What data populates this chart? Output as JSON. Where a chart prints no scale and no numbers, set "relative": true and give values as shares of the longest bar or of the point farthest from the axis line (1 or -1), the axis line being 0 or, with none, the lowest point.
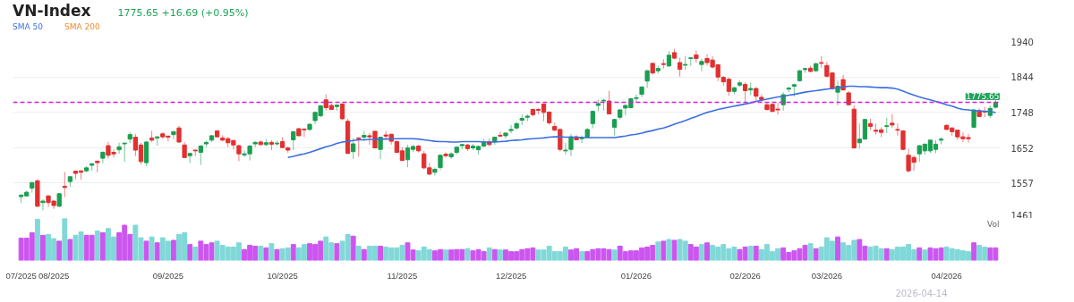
{
  "chart_data": [
    {
      "type": "candlestick",
      "title": "VN-Index",
      "subtitle": "1775.65 +16.69 (+0.95%)",
      "categories": [
        null,
        null,
        null,
        null,
        null,
        null,
        null,
        null,
        null,
        null,
        null,
        null,
        null,
        null,
        null,
        null,
        null,
        null,
        null,
        null,
        null,
        null,
        null,
        null,
        null,
        null,
        null,
        null,
        null,
        null,
        null,
        null,
        null,
        null,
        null,
        null,
        null,
        null,
        null,
        null,
        null,
        null,
        null,
        null,
        null,
        null,
        null,
        null,
        null,
        null,
        null,
        null,
        null,
        null,
        null,
        null,
        null,
        null,
        null,
        null,
        null,
        null,
        null,
        null,
        null,
        null,
        null,
        null,
        null,
        null,
        null,
        null,
        null,
        null,
        null,
        null,
        null,
        null,
        null,
        null,
        null,
        null,
        null,
        null,
        null,
        null,
        null,
        null,
        null,
        null,
        null,
        null,
        null,
        null,
        null,
        null,
        null,
        null,
        null,
        null,
        null,
        null,
        null,
        null,
        null,
        null,
        null,
        null,
        null,
        null,
        null,
        null,
        null,
        null,
        null,
        null,
        null,
        null,
        null,
        null,
        null,
        null,
        null,
        null,
        null,
        null,
        null,
        null,
        null,
        null,
        null,
        null,
        null,
        null,
        null,
        null,
        null,
        null,
        null,
        null,
        null,
        null,
        null,
        null,
        null,
        null,
        null,
        null,
        null,
        null,
        null,
        null,
        null,
        null,
        null,
        null,
        null,
        null,
        null,
        null,
        null,
        null,
        null,
        null,
        null,
        null,
        null,
        null,
        null,
        null,
        null,
        null,
        null,
        null,
        null,
        null,
        null,
        null,
        null,
        null
      ],
      "ohlc": [
        [
          1520,
          1527,
          1503,
          1524
        ],
        [
          1522,
          1536,
          1521,
          1532
        ],
        [
          1543,
          1561,
          1531,
          1558
        ],
        [
          1563,
          1566,
          1492,
          1494
        ],
        [
          1504,
          1513,
          1483,
          1508
        ],
        [
          1522,
          1524,
          1492,
          1504
        ],
        [
          1508,
          1511,
          1487,
          1496
        ],
        [
          1494,
          1529,
          1492,
          1528
        ],
        [
          1548,
          1587,
          1519,
          1545
        ],
        [
          1561,
          1575,
          1547,
          1574
        ],
        [
          1589,
          1590,
          1567,
          1583
        ],
        [
          1590,
          1591,
          1566,
          1586
        ],
        [
          1590,
          1603,
          1586,
          1598
        ],
        [
          1605,
          1611,
          1590,
          1609
        ],
        [
          1616,
          1618,
          1586,
          1612
        ],
        [
          1624,
          1644,
          1611,
          1640
        ],
        [
          1658,
          1668,
          1623,
          1632
        ],
        [
          1640,
          1648,
          1626,
          1636
        ],
        [
          1647,
          1666,
          1636,
          1655
        ],
        [
          1663,
          1666,
          1615,
          1665
        ],
        [
          1676,
          1695,
          1665,
          1688
        ],
        [
          1681,
          1690,
          1630,
          1646
        ],
        [
          1660,
          1666,
          1607,
          1615
        ],
        [
          1612,
          1670,
          1603,
          1668
        ],
        [
          1679,
          1698,
          1668,
          1673
        ],
        [
          1679,
          1684,
          1658,
          1682
        ],
        [
          1690,
          1694,
          1677,
          1682
        ],
        [
          1684,
          1685,
          1670,
          1681
        ],
        [
          1688,
          1698,
          1676,
          1696
        ],
        [
          1706,
          1712,
          1665,
          1668
        ],
        [
          1660,
          1668,
          1624,
          1626
        ],
        [
          1631,
          1639,
          1611,
          1637
        ],
        [
          1646,
          1648,
          1630,
          1644
        ],
        [
          1640,
          1660,
          1606,
          1657
        ],
        [
          1663,
          1671,
          1654,
          1667
        ],
        [
          1673,
          1687,
          1668,
          1685
        ],
        [
          1698,
          1700,
          1681,
          1682
        ],
        [
          1679,
          1686,
          1670,
          1673
        ],
        [
          1677,
          1682,
          1654,
          1666
        ],
        [
          1672,
          1674,
          1648,
          1660
        ],
        [
          1658,
          1661,
          1616,
          1636
        ],
        [
          1633,
          1645,
          1627,
          1636
        ],
        [
          1636,
          1660,
          1618,
          1657
        ],
        [
          1663,
          1670,
          1654,
          1667
        ],
        [
          1668,
          1673,
          1657,
          1661
        ],
        [
          1661,
          1676,
          1656,
          1666
        ],
        [
          1667,
          1673,
          1646,
          1662
        ],
        [
          1663,
          1671,
          1658,
          1665
        ],
        [
          1669,
          1681,
          1652,
          1653
        ],
        [
          1652,
          1656,
          1639,
          1646
        ],
        [
          1674,
          1698,
          1646,
          1696
        ],
        [
          1704,
          1706,
          1684,
          1685
        ],
        [
          1703,
          1705,
          1681,
          1701
        ],
        [
          1702,
          1718,
          1698,
          1716
        ],
        [
          1726,
          1751,
          1716,
          1748
        ],
        [
          1739,
          1768,
          1735,
          1766
        ],
        [
          1782,
          1797,
          1753,
          1761
        ],
        [
          1767,
          1772,
          1755,
          1756
        ],
        [
          1764,
          1769,
          1753,
          1768
        ],
        [
          1771,
          1772,
          1727,
          1731
        ],
        [
          1724,
          1731,
          1636,
          1637
        ],
        [
          1642,
          1678,
          1622,
          1663
        ],
        [
          1679,
          1681,
          1628,
          1677
        ],
        [
          1681,
          1698,
          1670,
          1686
        ],
        [
          1685,
          1692,
          1660,
          1682
        ],
        [
          1697,
          1698,
          1652,
          1652
        ],
        [
          1648,
          1682,
          1622,
          1681
        ],
        [
          1687,
          1697,
          1677,
          1684
        ],
        [
          1689,
          1690,
          1661,
          1670
        ],
        [
          1669,
          1673,
          1638,
          1640
        ],
        [
          1644,
          1654,
          1616,
          1618
        ],
        [
          1620,
          1660,
          1600,
          1652
        ],
        [
          1648,
          1660,
          1640,
          1656
        ],
        [
          1657,
          1660,
          1640,
          1644
        ],
        [
          1636,
          1644,
          1594,
          1598
        ],
        [
          1598,
          1611,
          1579,
          1581
        ],
        [
          1586,
          1599,
          1577,
          1594
        ],
        [
          1599,
          1634,
          1592,
          1632
        ],
        [
          1635,
          1640,
          1626,
          1631
        ],
        [
          1628,
          1640,
          1622,
          1636
        ],
        [
          1640,
          1657,
          1634,
          1654
        ],
        [
          1658,
          1663,
          1648,
          1661
        ],
        [
          1660,
          1663,
          1644,
          1650
        ],
        [
          1652,
          1663,
          1646,
          1657
        ],
        [
          1647,
          1658,
          1634,
          1656
        ],
        [
          1657,
          1677,
          1654,
          1668
        ],
        [
          1669,
          1678,
          1656,
          1661
        ],
        [
          1669,
          1682,
          1660,
          1681
        ],
        [
          1686,
          1696,
          1681,
          1684
        ],
        [
          1685,
          1695,
          1678,
          1692
        ],
        [
          1699,
          1714,
          1692,
          1702
        ],
        [
          1706,
          1721,
          1702,
          1718
        ],
        [
          1727,
          1743,
          1714,
          1732
        ],
        [
          1735,
          1743,
          1724,
          1738
        ],
        [
          1756,
          1759,
          1737,
          1742
        ],
        [
          1756,
          1759,
          1743,
          1754
        ],
        [
          1771,
          1772,
          1724,
          1748
        ],
        [
          1749,
          1751,
          1714,
          1720
        ],
        [
          1710,
          1720,
          1698,
          1700
        ],
        [
          1702,
          1705,
          1642,
          1648
        ],
        [
          1644,
          1666,
          1634,
          1646
        ],
        [
          1648,
          1690,
          1630,
          1682
        ],
        [
          1682,
          1686,
          1673,
          1674
        ],
        [
          1677,
          1686,
          1665,
          1680
        ],
        [
          1681,
          1706,
          1678,
          1702
        ],
        [
          1718,
          1753,
          1705,
          1751
        ],
        [
          1767,
          1783,
          1751,
          1772
        ],
        [
          1779,
          1785,
          1753,
          1781
        ],
        [
          1779,
          1807,
          1743,
          1744
        ],
        [
          1708,
          1730,
          1686,
          1729
        ],
        [
          1735,
          1756,
          1729,
          1755
        ],
        [
          1760,
          1769,
          1740,
          1767
        ],
        [
          1761,
          1788,
          1759,
          1785
        ],
        [
          1786,
          1797,
          1775,
          1788
        ],
        [
          1797,
          1819,
          1789,
          1817
        ],
        [
          1833,
          1863,
          1815,
          1861
        ],
        [
          1881,
          1883,
          1850,
          1855
        ],
        [
          1861,
          1875,
          1853,
          1867
        ],
        [
          1880,
          1892,
          1867,
          1878
        ],
        [
          1874,
          1914,
          1871,
          1903
        ],
        [
          1910,
          1920,
          1892,
          1895
        ],
        [
          1883,
          1896,
          1845,
          1865
        ],
        [
          1876,
          1901,
          1863,
          1878
        ],
        [
          1894,
          1898,
          1874,
          1896
        ],
        [
          1904,
          1916,
          1883,
          1894
        ],
        [
          1878,
          1893,
          1859,
          1886
        ],
        [
          1894,
          1906,
          1875,
          1883
        ],
        [
          1890,
          1900,
          1867,
          1871
        ],
        [
          1877,
          1879,
          1833,
          1844
        ],
        [
          1843,
          1847,
          1821,
          1831
        ],
        [
          1838,
          1843,
          1793,
          1805
        ],
        [
          1805,
          1817,
          1797,
          1815
        ],
        [
          1822,
          1834,
          1817,
          1828
        ],
        [
          1824,
          1830,
          1777,
          1807
        ],
        [
          1809,
          1829,
          1795,
          1813
        ],
        [
          1813,
          1816,
          1780,
          1792
        ],
        [
          1789,
          1797,
          1777,
          1783
        ],
        [
          1769,
          1775,
          1753,
          1756
        ],
        [
          1770,
          1772,
          1748,
          1751
        ],
        [
          1757,
          1774,
          1742,
          1755
        ],
        [
          1769,
          1803,
          1753,
          1796
        ],
        [
          1811,
          1817,
          1803,
          1814
        ],
        [
          1819,
          1826,
          1791,
          1823
        ],
        [
          1834,
          1863,
          1831,
          1861
        ],
        [
          1864,
          1869,
          1855,
          1867
        ],
        [
          1868,
          1875,
          1857,
          1859
        ],
        [
          1861,
          1883,
          1858,
          1880
        ],
        [
          1883,
          1901,
          1869,
          1881
        ],
        [
          1875,
          1885,
          1843,
          1846
        ],
        [
          1855,
          1856,
          1809,
          1813
        ],
        [
          1803,
          1834,
          1767,
          1819
        ],
        [
          1837,
          1850,
          1807,
          1809
        ],
        [
          1801,
          1806,
          1767,
          1769
        ],
        [
          1757,
          1768,
          1650,
          1652
        ],
        [
          1666,
          1718,
          1650,
          1676
        ],
        [
          1676,
          1731,
          1674,
          1729
        ],
        [
          1718,
          1731,
          1700,
          1710
        ],
        [
          1700,
          1718,
          1688,
          1697
        ],
        [
          1701,
          1708,
          1681,
          1694
        ],
        [
          1710,
          1734,
          1692,
          1712
        ],
        [
          1719,
          1744,
          1706,
          1714
        ],
        [
          1702,
          1718,
          1685,
          1700
        ],
        [
          1698,
          1700,
          1646,
          1648
        ],
        [
          1632,
          1650,
          1586,
          1590
        ],
        [
          1626,
          1632,
          1590,
          1613
        ],
        [
          1636,
          1660,
          1614,
          1658
        ],
        [
          1644,
          1665,
          1634,
          1662
        ],
        [
          1644,
          1674,
          1638,
          1673
        ],
        [
          1648,
          1673,
          1638,
          1662
        ],
        [
          1673,
          1681,
          1662,
          1676
        ],
        [
          1713,
          1716,
          1700,
          1702
        ],
        [
          1706,
          1708,
          1684,
          1696
        ],
        [
          1700,
          1702,
          1674,
          1682
        ],
        [
          1682,
          1694,
          1668,
          1677
        ],
        [
          1680,
          1690,
          1666,
          1677
        ],
        [
          1708,
          1756,
          1706,
          1755
        ],
        [
          1753,
          1759,
          1735,
          1737
        ],
        [
          1751,
          1763,
          1735,
          1749
        ],
        [
          1740,
          1767,
          1733,
          1759
        ],
        [
          1762,
          1783,
          1759,
          1775.65
        ]
      ],
      "colors": [
        "#1a9e50",
        "#1a9e50",
        "#1a9e50",
        "#e0302f",
        "#1a9e50",
        "#e0302f",
        "#e0302f",
        "#1a9e50",
        "#e0302f",
        "#1a9e50",
        "#e0302f",
        "#e0302f",
        "#1a9e50",
        "#1a9e50",
        "#e0302f",
        "#1a9e50",
        "#e0302f",
        "#e0302f",
        "#1a9e50",
        "#1a9e50",
        "#1a9e50",
        "#e0302f",
        "#e0302f",
        "#1a9e50",
        "#e0302f",
        "#1a9e50",
        "#e0302f",
        "#e0302f",
        "#1a9e50",
        "#e0302f",
        "#e0302f",
        "#1a9e50",
        "#e0302f",
        "#1a9e50",
        "#1a9e50",
        "#1a9e50",
        "#e0302f",
        "#e0302f",
        "#e0302f",
        "#e0302f",
        "#e0302f",
        "#1a9e50",
        "#1a9e50",
        "#1a9e50",
        "#e0302f",
        "#1a9e50",
        "#e0302f",
        "#1a9e50",
        "#e0302f",
        "#e0302f",
        "#1a9e50",
        "#e0302f",
        "#e0302f",
        "#1a9e50",
        "#1a9e50",
        "#1a9e50",
        "#e0302f",
        "#e0302f",
        "#1a9e50",
        "#e0302f",
        "#e0302f",
        "#1a9e50",
        "#e0302f",
        "#1a9e50",
        "#e0302f",
        "#e0302f",
        "#1a9e50",
        "#e0302f",
        "#e0302f",
        "#e0302f",
        "#e0302f",
        "#1a9e50",
        "#1a9e50",
        "#e0302f",
        "#e0302f",
        "#e0302f",
        "#1a9e50",
        "#1a9e50",
        "#e0302f",
        "#1a9e50",
        "#1a9e50",
        "#1a9e50",
        "#e0302f",
        "#1a9e50",
        "#1a9e50",
        "#1a9e50",
        "#e0302f",
        "#1a9e50",
        "#e0302f",
        "#1a9e50",
        "#1a9e50",
        "#1a9e50",
        "#1a9e50",
        "#1a9e50",
        "#e0302f",
        "#e0302f",
        "#e0302f",
        "#e0302f",
        "#e0302f",
        "#e0302f",
        "#1a9e50",
        "#1a9e50",
        "#e0302f",
        "#1a9e50",
        "#1a9e50",
        "#1a9e50",
        "#1a9e50",
        "#1a9e50",
        "#e0302f",
        "#1a9e50",
        "#1a9e50",
        "#1a9e50",
        "#1a9e50",
        "#1a9e50",
        "#1a9e50",
        "#1a9e50",
        "#e0302f",
        "#1a9e50",
        "#e0302f",
        "#1a9e50",
        "#e0302f",
        "#e0302f",
        "#1a9e50",
        "#1a9e50",
        "#e0302f",
        "#1a9e50",
        "#e0302f",
        "#e0302f",
        "#e0302f",
        "#e0302f",
        "#e0302f",
        "#1a9e50",
        "#1a9e50",
        "#e0302f",
        "#1a9e50",
        "#e0302f",
        "#e0302f",
        "#e0302f",
        "#e0302f",
        "#e0302f",
        "#1a9e50",
        "#1a9e50",
        "#1a9e50",
        "#1a9e50",
        "#1a9e50",
        "#e0302f",
        "#1a9e50",
        "#e0302f",
        "#e0302f",
        "#e0302f",
        "#1a9e50",
        "#e0302f",
        "#e0302f",
        "#e0302f",
        "#1a9e50",
        "#1a9e50",
        "#e0302f",
        "#e0302f",
        "#e0302f",
        "#1a9e50",
        "#e0302f",
        "#e0302f",
        "#e0302f",
        "#e0302f",
        "#e0302f",
        "#1a9e50",
        "#1a9e50",
        "#1a9e50",
        "#1a9e50",
        "#1a9e50",
        "#e0302f",
        "#e0302f",
        "#e0302f",
        "#e0302f",
        "#e0302f",
        "#1a9e50",
        "#e0302f",
        "#e0302f",
        "#1a9e50",
        "#1a9e50"
      ],
      "series": [
        {
          "name": "SMA 50",
          "type": "line",
          "color": "#3b6fe0",
          "values": [
            null,
            null,
            null,
            null,
            null,
            null,
            null,
            null,
            null,
            null,
            null,
            null,
            null,
            null,
            null,
            null,
            null,
            null,
            null,
            null,
            null,
            null,
            null,
            null,
            null,
            null,
            null,
            null,
            null,
            null,
            null,
            null,
            null,
            null,
            null,
            null,
            null,
            null,
            null,
            null,
            null,
            null,
            null,
            null,
            null,
            null,
            null,
            null,
            null,
            1626,
            1629,
            1633,
            1636,
            1640,
            1645,
            1650,
            1655,
            1659,
            1664,
            1668,
            1670,
            1672,
            1674,
            1674,
            1675,
            1675,
            1676,
            1676,
            1677,
            1677,
            1677,
            1677,
            1677,
            1676,
            1674,
            1672,
            1670,
            1669,
            1669,
            1668,
            1668,
            1669,
            1669,
            1669,
            1669,
            1668,
            1668,
            1668,
            1669,
            1670,
            1672,
            1673,
            1674,
            1676,
            1677,
            1678,
            1679,
            1681,
            1682,
            1682,
            1681,
            1681,
            1681,
            1680,
            1680,
            1680,
            1680,
            1680,
            1680,
            1680,
            1682,
            1684,
            1687,
            1689,
            1692,
            1696,
            1699,
            1703,
            1706,
            1711,
            1716,
            1721,
            1726,
            1732,
            1737,
            1743,
            1748,
            1752,
            1756,
            1759,
            1762,
            1765,
            1768,
            1771,
            1774,
            1778,
            1781,
            1784,
            1787,
            1790,
            1792,
            1795,
            1797,
            1800,
            1803,
            1805,
            1807,
            1809,
            1811,
            1813,
            1815,
            1817,
            1819,
            1819,
            1818,
            1818,
            1817,
            1816,
            1815,
            1815,
            1814,
            1811,
            1806,
            1800,
            1795,
            1790,
            1786,
            1782,
            1778,
            1774,
            1769,
            1765,
            1760,
            1756,
            1755,
            1753,
            1752,
            1751,
            1750,
            1748
          ]
        },
        {
          "name": "SMA 200",
          "type": "line",
          "color": "#f08a30",
          "values": [
            null,
            null,
            null,
            null,
            null,
            null,
            null,
            null,
            null,
            null,
            null,
            null,
            null,
            null,
            null,
            null,
            null,
            null,
            null,
            null,
            null,
            null,
            null,
            null,
            null,
            null,
            null,
            null,
            null,
            null,
            null,
            null,
            null,
            null,
            null,
            null,
            null,
            null,
            null,
            null,
            null,
            null,
            null,
            null,
            null,
            null,
            null,
            null,
            null,
            null,
            null,
            null,
            null,
            null,
            null,
            null,
            null,
            null,
            null,
            null,
            null,
            null,
            null,
            null,
            null,
            null,
            null,
            null,
            null,
            null,
            null,
            null,
            null,
            null,
            null,
            null,
            null,
            null,
            null,
            null,
            null,
            null,
            null,
            null,
            null,
            null,
            null,
            null,
            null,
            null,
            null,
            null,
            null,
            null,
            null,
            null,
            null,
            null,
            null,
            null,
            null,
            null,
            null,
            null,
            null,
            null,
            null,
            null,
            null,
            null,
            null,
            null,
            null,
            null,
            null,
            null,
            null,
            null,
            null,
            null,
            null,
            null,
            null,
            null,
            null,
            null,
            null,
            null,
            null,
            null,
            null,
            null,
            null,
            null,
            null,
            null,
            null,
            null,
            null,
            null,
            null,
            null,
            null,
            null,
            null,
            null,
            null,
            null,
            null,
            null,
            null,
            null,
            null,
            null,
            null,
            null,
            null,
            null,
            null,
            null,
            null,
            null,
            null,
            null,
            null,
            null,
            null,
            null,
            null,
            null,
            null,
            null,
            null,
            null,
            null,
            null,
            null,
            null,
            null,
            null
          ]
        }
      ],
      "ylim": [
        1461,
        1940
      ],
      "yticks": [
        1461,
        1557,
        1652,
        1748,
        1844,
        1940
      ],
      "grid": "y",
      "legend": "top left",
      "tick_labels": "y",
      "ref_lines": [
        {
          "axis": "y",
          "value": 1775.65,
          "label": "1775.65",
          "color": "#d61ee0",
          "line_style": "dashed"
        }
      ]
    },
    {
      "type": "bar",
      "relative": true,
      "ylabel": "Vol",
      "categories": [
        "07/2025",
        null,
        null,
        null,
        null,
        null,
        "08/2025",
        null,
        null,
        null,
        null,
        null,
        null,
        null,
        null,
        null,
        null,
        null,
        null,
        null,
        null,
        null,
        null,
        null,
        null,
        null,
        null,
        "09/2025",
        null,
        null,
        null,
        null,
        null,
        null,
        null,
        null,
        null,
        null,
        null,
        null,
        null,
        null,
        null,
        null,
        null,
        null,
        null,
        null,
        "10/2025",
        null,
        null,
        null,
        null,
        null,
        null,
        null,
        null,
        null,
        null,
        null,
        null,
        null,
        null,
        null,
        null,
        null,
        null,
        null,
        null,
        null,
        "11/2025",
        null,
        null,
        null,
        null,
        null,
        null,
        null,
        null,
        null,
        null,
        null,
        null,
        null,
        null,
        null,
        null,
        null,
        null,
        null,
        "12/2025",
        null,
        null,
        null,
        null,
        null,
        null,
        null,
        null,
        null,
        null,
        null,
        null,
        null,
        null,
        null,
        null,
        null,
        null,
        null,
        null,
        null,
        null,
        "01/2026",
        null,
        null,
        null,
        null,
        null,
        null,
        null,
        null,
        null,
        null,
        null,
        null,
        null,
        null,
        null,
        null,
        null,
        null,
        null,
        "02/2026",
        null,
        null,
        null,
        null,
        null,
        null,
        null,
        null,
        null,
        null,
        null,
        null,
        null,
        null,
        "03/2026",
        null,
        null,
        null,
        null,
        null,
        null,
        null,
        null,
        null,
        null,
        null,
        null,
        null,
        null,
        null,
        null,
        null,
        null,
        null,
        null,
        null,
        "04/2026",
        null,
        null,
        null,
        null,
        null,
        null,
        null,
        null,
        null
      ],
      "values": [
        0.53,
        0.53,
        0.66,
        0.98,
        0.6,
        0.62,
        0.52,
        0.46,
        1,
        0.5,
        0.6,
        0.68,
        0.6,
        0.6,
        0.7,
        0.66,
        0.76,
        0.56,
        0.66,
        0.84,
        0.62,
        0.84,
        0.54,
        0.46,
        0.56,
        0.42,
        0.54,
        0.46,
        0.48,
        0.62,
        0.66,
        0.38,
        0.32,
        0.46,
        0.38,
        0.42,
        0.46,
        0.36,
        0.32,
        0.32,
        0.42,
        0.26,
        0.36,
        0.34,
        0.34,
        0.3,
        0.4,
        0.26,
        0.28,
        0.3,
        0.38,
        0.3,
        0.38,
        0.4,
        0.38,
        0.46,
        0.56,
        0.42,
        0.4,
        0.46,
        0.62,
        0.58,
        0.34,
        0.26,
        0.34,
        0.34,
        0.34,
        0.32,
        0.3,
        0.3,
        0.36,
        0.42,
        0.25,
        0.23,
        0.32,
        0.26,
        0.23,
        0.26,
        0.25,
        0.25,
        0.26,
        0.26,
        0.28,
        0.23,
        0.26,
        0.21,
        0.3,
        0.26,
        0.25,
        0.25,
        0.21,
        0.21,
        0.26,
        0.28,
        0.3,
        0.25,
        0.25,
        0.34,
        0.21,
        0.21,
        0.32,
        0.25,
        0.28,
        0.21,
        0.21,
        0.26,
        0.28,
        0.28,
        0.26,
        0.25,
        0.34,
        0.21,
        0.23,
        0.23,
        0.3,
        0.32,
        0.36,
        0.44,
        0.46,
        0.5,
        0.48,
        0.5,
        0.46,
        0.38,
        0.32,
        0.38,
        0.42,
        0.36,
        0.32,
        0.38,
        0.28,
        0.32,
        0.26,
        0.32,
        0.34,
        0.34,
        0.26,
        0.38,
        0.21,
        0.28,
        0.3,
        0.19,
        0.23,
        0.28,
        0.36,
        0.4,
        0.28,
        0.32,
        0.54,
        0.46,
        0.56,
        0.42,
        0.36,
        0.48,
        0.5,
        0.34,
        0.32,
        0.34,
        0.28,
        0.28,
        0.26,
        0.32,
        0.32,
        0.38,
        0.26,
        0.3,
        0.25,
        0.3,
        0.28,
        0.3,
        0.32,
        0.28,
        0.26,
        0.23,
        0.21,
        0.42,
        0.36,
        0.32,
        0.3,
        0.3
      ],
      "colors": [
        "#cc55f0",
        "#cc55f0",
        "#cc55f0",
        "#80d8d8",
        "#cc55f0",
        "#80d8d8",
        "#80d8d8",
        "#cc55f0",
        "#80d8d8",
        "#cc55f0",
        "#80d8d8",
        "#80d8d8",
        "#cc55f0",
        "#cc55f0",
        "#80d8d8",
        "#cc55f0",
        "#80d8d8",
        "#80d8d8",
        "#cc55f0",
        "#cc55f0",
        "#cc55f0",
        "#80d8d8",
        "#80d8d8",
        "#cc55f0",
        "#80d8d8",
        "#cc55f0",
        "#80d8d8",
        "#80d8d8",
        "#cc55f0",
        "#80d8d8",
        "#80d8d8",
        "#cc55f0",
        "#80d8d8",
        "#cc55f0",
        "#cc55f0",
        "#cc55f0",
        "#80d8d8",
        "#80d8d8",
        "#80d8d8",
        "#80d8d8",
        "#80d8d8",
        "#cc55f0",
        "#cc55f0",
        "#cc55f0",
        "#80d8d8",
        "#cc55f0",
        "#80d8d8",
        "#cc55f0",
        "#80d8d8",
        "#80d8d8",
        "#cc55f0",
        "#80d8d8",
        "#80d8d8",
        "#cc55f0",
        "#cc55f0",
        "#cc55f0",
        "#80d8d8",
        "#80d8d8",
        "#cc55f0",
        "#80d8d8",
        "#80d8d8",
        "#cc55f0",
        "#80d8d8",
        "#cc55f0",
        "#80d8d8",
        "#80d8d8",
        "#cc55f0",
        "#80d8d8",
        "#80d8d8",
        "#80d8d8",
        "#80d8d8",
        "#cc55f0",
        "#cc55f0",
        "#80d8d8",
        "#80d8d8",
        "#80d8d8",
        "#cc55f0",
        "#cc55f0",
        "#80d8d8",
        "#cc55f0",
        "#cc55f0",
        "#cc55f0",
        "#80d8d8",
        "#cc55f0",
        "#cc55f0",
        "#cc55f0",
        "#80d8d8",
        "#cc55f0",
        "#80d8d8",
        "#cc55f0",
        "#cc55f0",
        "#cc55f0",
        "#cc55f0",
        "#cc55f0",
        "#cc55f0",
        "#80d8d8",
        "#80d8d8",
        "#80d8d8",
        "#80d8d8",
        "#80d8d8",
        "#80d8d8",
        "#cc55f0",
        "#cc55f0",
        "#80d8d8",
        "#cc55f0",
        "#cc55f0",
        "#cc55f0",
        "#cc55f0",
        "#cc55f0",
        "#80d8d8",
        "#cc55f0",
        "#cc55f0",
        "#cc55f0",
        "#cc55f0",
        "#cc55f0",
        "#cc55f0",
        "#cc55f0",
        "#80d8d8",
        "#cc55f0",
        "#80d8d8",
        "#cc55f0",
        "#80d8d8",
        "#80d8d8",
        "#cc55f0",
        "#cc55f0",
        "#80d8d8",
        "#cc55f0",
        "#80d8d8",
        "#80d8d8",
        "#80d8d8",
        "#80d8d8",
        "#80d8d8",
        "#cc55f0",
        "#cc55f0",
        "#80d8d8",
        "#cc55f0",
        "#80d8d8",
        "#80d8d8",
        "#80d8d8",
        "#80d8d8",
        "#cc55f0",
        "#cc55f0",
        "#cc55f0",
        "#cc55f0",
        "#cc55f0",
        "#80d8d8",
        "#cc55f0",
        "#80d8d8",
        "#80d8d8",
        "#80d8d8",
        "#cc55f0",
        "#80d8d8",
        "#80d8d8",
        "#80d8d8",
        "#cc55f0",
        "#cc55f0",
        "#80d8d8",
        "#80d8d8",
        "#80d8d8",
        "#cc55f0",
        "#80d8d8",
        "#80d8d8",
        "#80d8d8",
        "#80d8d8",
        "#80d8d8",
        "#cc55f0",
        "#80d8d8",
        "#cc55f0",
        "#cc55f0",
        "#cc55f0",
        "#80d8d8",
        "#80d8d8",
        "#80d8d8",
        "#80d8d8",
        "#80d8d8",
        "#cc55f0",
        "#80d8d8",
        "#80d8d8",
        "#cc55f0",
        "#cc55f0"
      ],
      "tick_labels": "x",
      "annotations": [
        "2026-04-14"
      ]
    }
  ]
}
